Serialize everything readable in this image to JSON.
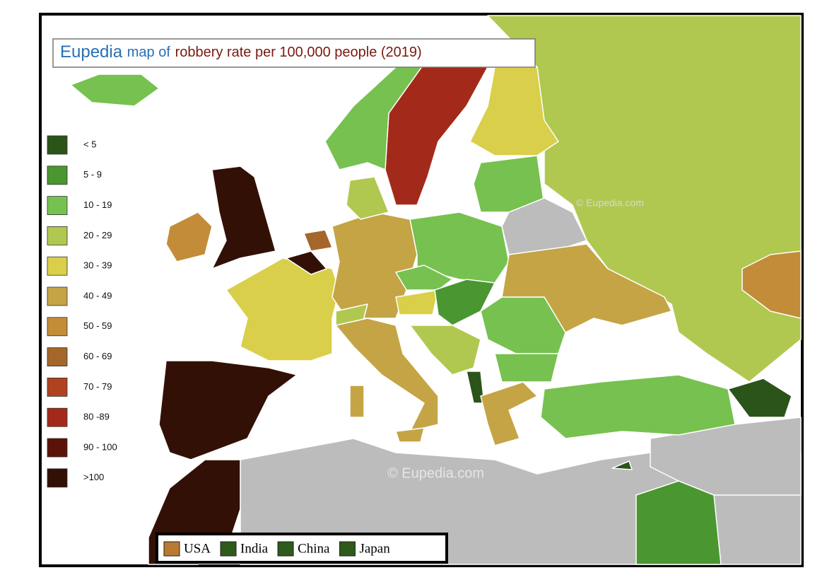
{
  "title": {
    "brand": "Eupedia",
    "text1": "map of",
    "text2": "robbery rate per 100,000 people (2019)"
  },
  "legend": [
    {
      "label": "< 5",
      "color": "#2b5419"
    },
    {
      "label": "5 - 9",
      "color": "#4a9630"
    },
    {
      "label": "10 - 19",
      "color": "#76c14f"
    },
    {
      "label": "20 - 29",
      "color": "#b0c84f"
    },
    {
      "label": "30 - 39",
      "color": "#d9cf4a"
    },
    {
      "label": "40 - 49",
      "color": "#c5a446"
    },
    {
      "label": "50 - 59",
      "color": "#c38c38"
    },
    {
      "label": "60 - 69",
      "color": "#a5662a"
    },
    {
      "label": "70 - 79",
      "color": "#b1421f"
    },
    {
      "label": "80 -89",
      "color": "#a32a1a"
    },
    {
      "label": "90 - 100",
      "color": "#5c1208"
    },
    {
      "label": ">100",
      "color": "#331005"
    }
  ],
  "comparison": [
    {
      "label": "USA",
      "color": "#b87a33"
    },
    {
      "label": "India",
      "color": "#2e5a1c"
    },
    {
      "label": "China",
      "color": "#2e5a1c"
    },
    {
      "label": "Japan",
      "color": "#2e5a1c"
    }
  ],
  "watermarks": [
    "© Eupedia.com",
    "© Eupedia.com"
  ]
}
